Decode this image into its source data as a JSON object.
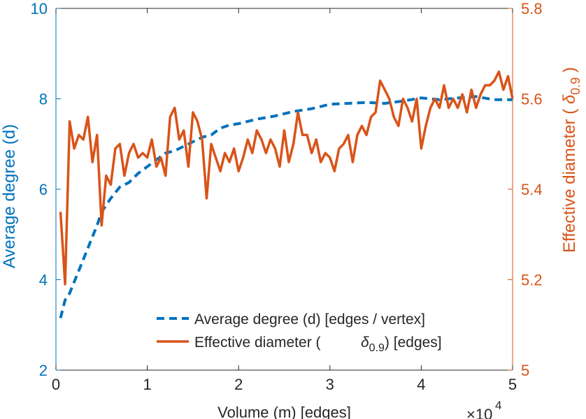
{
  "chart_data": {
    "type": "line",
    "title": "",
    "xlabel": "Volume (m) [edges]",
    "x_multiplier": "×10",
    "x_multiplier_exp": "4",
    "xlim": [
      0,
      5
    ],
    "x_ticks": [
      "0",
      "1",
      "2",
      "3",
      "4",
      "5"
    ],
    "y_left": {
      "label": "Average degree (d)",
      "lim": [
        2,
        10
      ],
      "ticks": [
        "2",
        "4",
        "6",
        "8",
        "10"
      ],
      "color": "#0072bd"
    },
    "y_right": {
      "label_text": "Effective diameter (",
      "label_symbol": "δ",
      "label_sub": "0.9",
      "label_close": ")",
      "lim": [
        5.0,
        5.8
      ],
      "ticks": [
        "5",
        "5.2",
        "5.4",
        "5.6",
        "5.8"
      ],
      "color": "#d95319"
    },
    "legend": {
      "placement": "bottom-right",
      "entries": [
        {
          "text": "Average degree (d) [edges / vertex]"
        },
        {
          "pre": "Effective diameter (",
          "sym": "δ",
          "sub": "0.9",
          "post": ") [edges]"
        }
      ]
    },
    "series": [
      {
        "name": "Average degree (d) [edges / vertex]",
        "axis": "left",
        "style": "dashed",
        "color": "#0072bd",
        "x": [
          0.05,
          0.1,
          0.15,
          0.2,
          0.25,
          0.3,
          0.35,
          0.4,
          0.45,
          0.5,
          0.6,
          0.7,
          0.8,
          0.9,
          1.0,
          1.1,
          1.2,
          1.3,
          1.4,
          1.5,
          1.6,
          1.7,
          1.8,
          1.9,
          2.0,
          2.2,
          2.4,
          2.6,
          2.8,
          3.0,
          3.2,
          3.4,
          3.6,
          3.8,
          4.0,
          4.2,
          4.4,
          4.6,
          4.8,
          5.0
        ],
        "values": [
          3.15,
          3.55,
          3.7,
          3.95,
          4.2,
          4.45,
          4.7,
          4.95,
          5.2,
          5.5,
          5.8,
          6.05,
          6.15,
          6.35,
          6.5,
          6.65,
          6.8,
          6.85,
          6.95,
          7.05,
          7.15,
          7.2,
          7.35,
          7.42,
          7.45,
          7.55,
          7.62,
          7.72,
          7.78,
          7.88,
          7.9,
          7.92,
          7.9,
          7.95,
          8.02,
          7.98,
          8.02,
          8.05,
          7.98,
          7.98
        ]
      },
      {
        "name": "Effective diameter (δ_0.9) [edges]",
        "axis": "right",
        "style": "solid",
        "color": "#d95319",
        "x": [
          0.05,
          0.1,
          0.15,
          0.2,
          0.25,
          0.3,
          0.35,
          0.4,
          0.45,
          0.5,
          0.55,
          0.6,
          0.65,
          0.7,
          0.75,
          0.8,
          0.85,
          0.9,
          0.95,
          1.0,
          1.05,
          1.1,
          1.15,
          1.2,
          1.25,
          1.3,
          1.35,
          1.4,
          1.45,
          1.5,
          1.55,
          1.6,
          1.65,
          1.7,
          1.75,
          1.8,
          1.85,
          1.9,
          1.95,
          2.0,
          2.05,
          2.1,
          2.15,
          2.2,
          2.25,
          2.3,
          2.35,
          2.4,
          2.45,
          2.5,
          2.55,
          2.6,
          2.65,
          2.7,
          2.75,
          2.8,
          2.85,
          2.9,
          2.95,
          3.0,
          3.05,
          3.1,
          3.15,
          3.2,
          3.25,
          3.3,
          3.35,
          3.4,
          3.45,
          3.5,
          3.55,
          3.6,
          3.65,
          3.7,
          3.75,
          3.8,
          3.85,
          3.9,
          3.95,
          4.0,
          4.05,
          4.1,
          4.15,
          4.2,
          4.25,
          4.3,
          4.35,
          4.4,
          4.45,
          4.5,
          4.55,
          4.6,
          4.65,
          4.7,
          4.75,
          4.8,
          4.85,
          4.9,
          4.95,
          5.0
        ],
        "values": [
          5.35,
          5.19,
          5.55,
          5.49,
          5.52,
          5.51,
          5.56,
          5.46,
          5.52,
          5.32,
          5.43,
          5.41,
          5.49,
          5.5,
          5.43,
          5.48,
          5.5,
          5.47,
          5.48,
          5.47,
          5.51,
          5.45,
          5.47,
          5.43,
          5.56,
          5.58,
          5.51,
          5.53,
          5.45,
          5.57,
          5.55,
          5.51,
          5.38,
          5.5,
          5.47,
          5.44,
          5.48,
          5.46,
          5.49,
          5.44,
          5.47,
          5.51,
          5.48,
          5.53,
          5.51,
          5.48,
          5.51,
          5.49,
          5.45,
          5.53,
          5.46,
          5.5,
          5.57,
          5.52,
          5.52,
          5.48,
          5.51,
          5.46,
          5.48,
          5.47,
          5.44,
          5.49,
          5.5,
          5.52,
          5.46,
          5.52,
          5.54,
          5.52,
          5.56,
          5.57,
          5.64,
          5.62,
          5.6,
          5.56,
          5.54,
          5.6,
          5.58,
          5.55,
          5.6,
          5.49,
          5.54,
          5.58,
          5.6,
          5.58,
          5.63,
          5.58,
          5.6,
          5.58,
          5.61,
          5.57,
          5.62,
          5.58,
          5.61,
          5.63,
          5.63,
          5.64,
          5.66,
          5.62,
          5.65,
          5.6
        ]
      }
    ]
  }
}
